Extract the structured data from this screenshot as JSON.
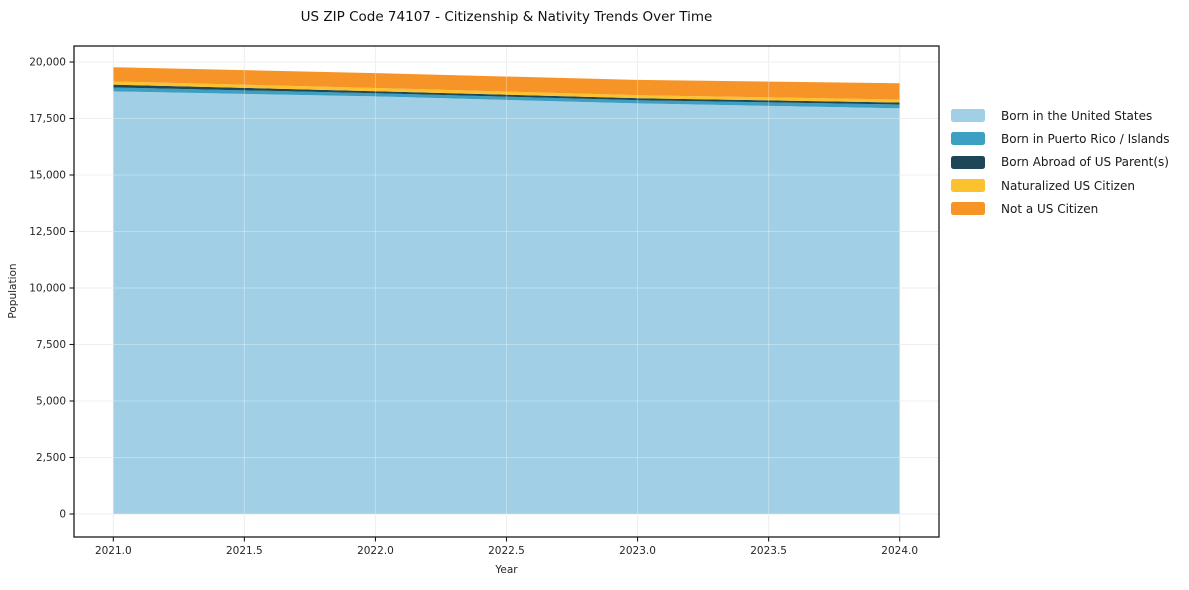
{
  "chart_data": {
    "type": "area",
    "stacked": true,
    "title": "US ZIP Code 74107 - Citizenship & Nativity Trends Over Time",
    "xlabel": "Year",
    "ylabel": "Population",
    "x": [
      2021,
      2022,
      2023,
      2024
    ],
    "series": [
      {
        "name": "Born in the United States",
        "color": "#a1d0e6",
        "values": [
          18700,
          18480,
          18170,
          17950
        ]
      },
      {
        "name": "Born in Puerto Rico / Islands",
        "color": "#3d9fc1",
        "values": [
          170,
          140,
          140,
          170
        ]
      },
      {
        "name": "Born Abroad of US Parent(s)",
        "color": "#1d4757",
        "values": [
          130,
          90,
          90,
          90
        ]
      },
      {
        "name": "Naturalized US Citizen",
        "color": "#fcc22e",
        "values": [
          140,
          140,
          130,
          130
        ]
      },
      {
        "name": "Not a US Citizen",
        "color": "#f79428",
        "values": [
          630,
          660,
          680,
          720
        ]
      }
    ],
    "totals": [
      19770,
      19510,
      19210,
      19060
    ],
    "x_ticks": [
      "2021.0",
      "2021.5",
      "2022.0",
      "2022.5",
      "2023.0",
      "2023.5",
      "2024.0"
    ],
    "x_tick_values": [
      2021,
      2021.5,
      2022,
      2022.5,
      2023,
      2023.5,
      2024
    ],
    "y_ticks": [
      "0",
      "2,500",
      "5,000",
      "7,500",
      "10,000",
      "12,500",
      "15,000",
      "17,500",
      "20,000"
    ],
    "y_tick_values": [
      0,
      2500,
      5000,
      7500,
      10000,
      12500,
      15000,
      17500,
      20000
    ],
    "xlim": [
      2020.85,
      2024.15
    ],
    "ylim": [
      -1018,
      20708
    ],
    "grid": true,
    "legend_position": "right-outside"
  }
}
